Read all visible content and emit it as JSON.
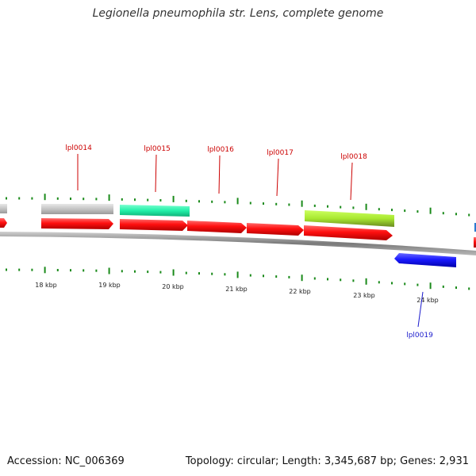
{
  "title": "Legionella pneumophila str. Lens, complete genome",
  "footer": {
    "accession": "Accession: NC_006369",
    "summary": "Topology: circular; Length: 3,345,687 bp; Genes: 2,931"
  },
  "colors": {
    "cds_forward": "#ff1010",
    "cds_reverse": "#1a1aff",
    "gray_feature": "#c8c8c8",
    "teal_feature": "#22f0a8",
    "lime_feature": "#a8e830",
    "tick": "#1a8a1a",
    "label_red": "#cc0000",
    "label_blue": "#1a1acc",
    "backbone": "#909090"
  },
  "ruler": {
    "labels": [
      "18 kbp",
      "19 kbp",
      "20 kbp",
      "21 kbp",
      "22 kbp",
      "23 kbp",
      "24 kbp"
    ]
  },
  "gene_labels": [
    "lpl0014",
    "lpl0015",
    "lpl0016",
    "lpl0017",
    "lpl0018",
    "lpl0019"
  ]
}
